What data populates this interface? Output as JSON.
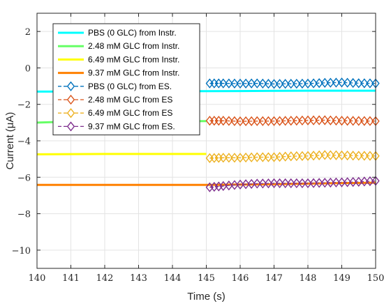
{
  "chart_data": {
    "type": "line",
    "title": "",
    "xlabel": "Time (s)",
    "ylabel": "Current (μA)",
    "xlim": [
      140,
      150
    ],
    "ylim": [
      -11,
      3
    ],
    "xticks": [
      "140",
      "141",
      "142",
      "143",
      "144",
      "145",
      "146",
      "147",
      "148",
      "149",
      "150"
    ],
    "yticks": [
      "2",
      "0",
      "−2",
      "−4",
      "−6",
      "−8",
      "−10"
    ],
    "grid": true,
    "legend_position": "top-left",
    "series": [
      {
        "name": "PBS (0 GLC) from Instr.",
        "color": "#00FFFF",
        "style": "solid",
        "x": [
          140,
          142,
          144,
          146,
          148,
          150
        ],
        "y": [
          -1.3,
          -1.3,
          -1.28,
          -1.27,
          -1.25,
          -1.25
        ]
      },
      {
        "name": "2.48 mM GLC from Instr.",
        "color": "#66FF66",
        "style": "solid",
        "x": [
          140,
          140.5,
          141,
          142,
          143,
          144,
          145
        ],
        "y": [
          -3.0,
          -2.97,
          -2.95,
          -2.94,
          -2.93,
          -2.93,
          -2.92
        ]
      },
      {
        "name": "6.49 mM GLC from Instr.",
        "color": "#FFFF00",
        "style": "solid",
        "x": [
          140,
          141,
          142,
          143,
          144,
          145
        ],
        "y": [
          -4.74,
          -4.73,
          -4.72,
          -4.72,
          -4.72,
          -4.72
        ]
      },
      {
        "name": "9.37 mM GLC from Instr.",
        "color": "#FF8000",
        "style": "solid",
        "x": [
          140,
          141,
          142,
          143,
          144,
          145,
          146,
          147,
          148,
          149,
          150
        ],
        "y": [
          -6.42,
          -6.42,
          -6.42,
          -6.42,
          -6.42,
          -6.42,
          -6.4,
          -6.38,
          -6.35,
          -6.32,
          -6.3
        ]
      },
      {
        "name": "PBS (0 GLC) from ES.",
        "color": "#0072BD",
        "style": "dashed-diamond",
        "x": [
          145.1,
          145.5,
          146,
          146.5,
          147,
          147.5,
          148,
          148.5,
          149,
          149.5,
          150
        ],
        "y": [
          -0.85,
          -0.85,
          -0.86,
          -0.85,
          -0.88,
          -0.87,
          -0.86,
          -0.82,
          -0.8,
          -0.84,
          -0.85
        ]
      },
      {
        "name": "2.48 mM GLC from ES",
        "color": "#D95319",
        "style": "dashed-diamond",
        "x": [
          145.1,
          145.5,
          146,
          146.5,
          147,
          147.5,
          148,
          148.5,
          149,
          149.5,
          150
        ],
        "y": [
          -2.9,
          -2.9,
          -2.93,
          -2.92,
          -2.92,
          -2.9,
          -2.88,
          -2.87,
          -2.9,
          -2.91,
          -2.92
        ]
      },
      {
        "name": "6.49 mM GLC from ES",
        "color": "#EDB120",
        "style": "dashed-diamond",
        "x": [
          145.1,
          145.5,
          146,
          146.5,
          147,
          147.5,
          148,
          148.5,
          149,
          149.5,
          150
        ],
        "y": [
          -4.95,
          -4.93,
          -4.93,
          -4.9,
          -4.9,
          -4.85,
          -4.83,
          -4.78,
          -4.8,
          -4.82,
          -4.83
        ]
      },
      {
        "name": "9.37 mM GLC from ES.",
        "color": "#7E2F8E",
        "style": "dashed-diamond",
        "x": [
          145.1,
          145.5,
          146,
          146.5,
          147,
          147.5,
          148,
          148.5,
          149,
          149.5,
          150
        ],
        "y": [
          -6.55,
          -6.48,
          -6.4,
          -6.35,
          -6.33,
          -6.33,
          -6.33,
          -6.3,
          -6.28,
          -6.25,
          -6.2
        ]
      }
    ]
  }
}
